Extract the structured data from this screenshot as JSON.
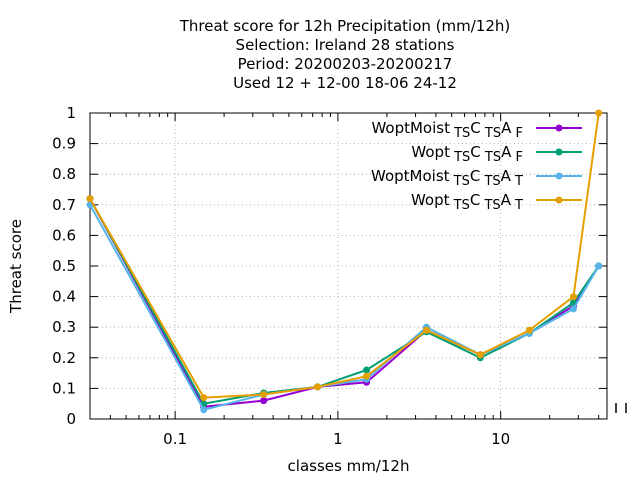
{
  "chart_data": {
    "type": "line",
    "title_lines": [
      "Threat score  for 12h Precipitation (mm/12h)",
      "Selection: Ireland      28 stations",
      "Period: 20200203-20200217",
      "Used  12 + 12-00 18-06 24-12"
    ],
    "xlabel": "classes mm/12h",
    "ylabel": "Threat score",
    "x_scale": "log",
    "xlim": [
      0.03,
      45
    ],
    "ylim": [
      0,
      1
    ],
    "x_ticks": [
      0.1,
      1,
      10
    ],
    "x_tick_labels": [
      "0.1",
      "1",
      "10"
    ],
    "y_ticks": [
      0,
      0.1,
      0.2,
      0.3,
      0.4,
      0.5,
      0.6,
      0.7,
      0.8,
      0.9,
      1
    ],
    "y_tick_labels": [
      "0",
      "0.1",
      "0.2",
      "0.3",
      "0.4",
      "0.5",
      "0.6",
      "0.7",
      "0.8",
      "0.9",
      "1"
    ],
    "grid": true,
    "legend_position": "top-right",
    "x": [
      0.03,
      0.15,
      0.35,
      0.75,
      1.5,
      3.5,
      7.5,
      15,
      28,
      40
    ],
    "series": [
      {
        "name_base": "WoptMoist",
        "name_sub1": "TS",
        "name_mid": "C",
        "name_sub2": "TS",
        "name_end": "A",
        "name_sub3": "F",
        "color": "#9400d3",
        "values": [
          0.72,
          0.04,
          0.06,
          0.105,
          0.12,
          0.29,
          0.21,
          0.28,
          0.37,
          0.5
        ]
      },
      {
        "name_base": "Wopt",
        "name_sub1": "TS",
        "name_mid": "C",
        "name_sub2": "TS",
        "name_end": "A",
        "name_sub3": "F",
        "color": "#009e73",
        "values": [
          0.72,
          0.05,
          0.085,
          0.105,
          0.16,
          0.285,
          0.2,
          0.28,
          0.38,
          0.5
        ]
      },
      {
        "name_base": "WoptMoist",
        "name_sub1": "TS",
        "name_mid": "C",
        "name_sub2": "TS",
        "name_end": "A",
        "name_sub3": "T",
        "color": "#56b4e9",
        "values": [
          0.7,
          0.03,
          0.08,
          0.105,
          0.13,
          0.3,
          0.21,
          0.28,
          0.36,
          0.5
        ]
      },
      {
        "name_base": "Wopt",
        "name_sub1": "TS",
        "name_mid": "C",
        "name_sub2": "TS",
        "name_end": "A",
        "name_sub3": "T",
        "color": "#e69f00",
        "values": [
          0.72,
          0.07,
          0.08,
          0.105,
          0.14,
          0.29,
          0.21,
          0.29,
          0.4,
          1.0
        ]
      }
    ]
  }
}
